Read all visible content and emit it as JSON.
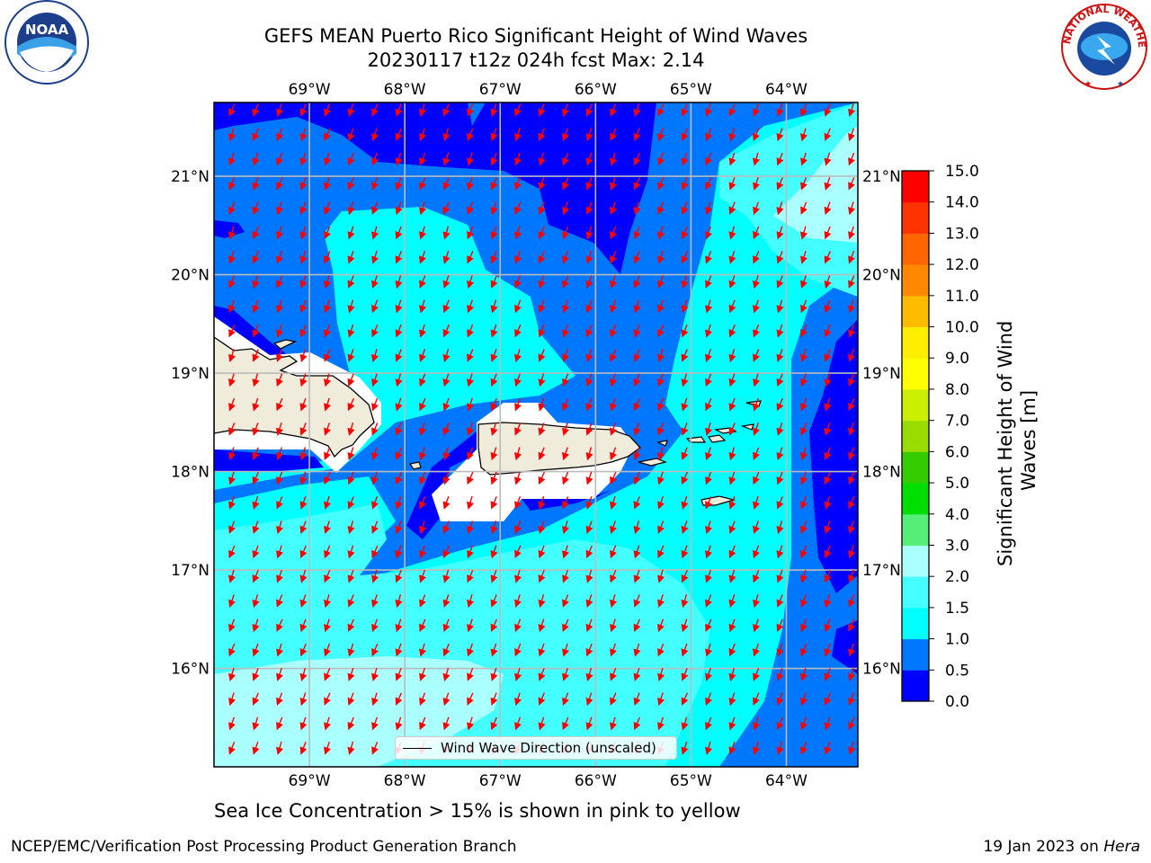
{
  "title": {
    "line1": "GEFS MEAN Puerto Rico Significant Height of Wind Waves",
    "line2": "20230117 t12z 024h fcst   Max: 2.14"
  },
  "logos": {
    "left": {
      "name": "noaa-logo",
      "text": "NOAA",
      "ring_text": "NATIONAL OCEANIC AND ATMOSPHERIC ADMINISTRATION · U.S. DEPARTMENT OF COMMERCE"
    },
    "right": {
      "name": "nws-logo",
      "ring_text": "NATIONAL WEATHER SERVICE"
    }
  },
  "map": {
    "lon_range": [
      -70.0,
      -63.25
    ],
    "lat_range": [
      15.0,
      21.75
    ],
    "lon_ticks": [
      "69°W",
      "68°W",
      "67°W",
      "66°W",
      "65°W",
      "64°W"
    ],
    "lat_ticks": [
      "21°N",
      "20°N",
      "19°N",
      "18°N",
      "17°N",
      "16°N"
    ],
    "arrow_color": "#ff0000",
    "land_color": "#efecdc",
    "grid": true
  },
  "legend": {
    "label": "Wind Wave Direction (unscaled)",
    "placement": "lower center"
  },
  "colorbar": {
    "label": "Significant Height of Wind Waves [m]",
    "ticks": [
      "0.0",
      "0.5",
      "1.0",
      "1.5",
      "2.0",
      "3.0",
      "4.0",
      "5.0",
      "6.0",
      "7.0",
      "8.0",
      "9.0",
      "10.0",
      "11.0",
      "12.0",
      "13.0",
      "14.0",
      "15.0"
    ],
    "colors": [
      "#0000ff",
      "#0077ff",
      "#00ffff",
      "#44ffff",
      "#aaffff",
      "#55ee77",
      "#00dd00",
      "#33cc00",
      "#99dd00",
      "#ccee00",
      "#ffff00",
      "#ffee00",
      "#ffbb00",
      "#ff8800",
      "#ff6600",
      "#ff3300",
      "#ff0000"
    ]
  },
  "subtitle": "Sea Ice Concentration > 15% is shown in pink to yellow",
  "footer": {
    "left": "NCEP/EMC/Verification Post Processing Product Generation Branch",
    "right_date": "19 Jan 2023 on ",
    "right_host": "Hera"
  }
}
